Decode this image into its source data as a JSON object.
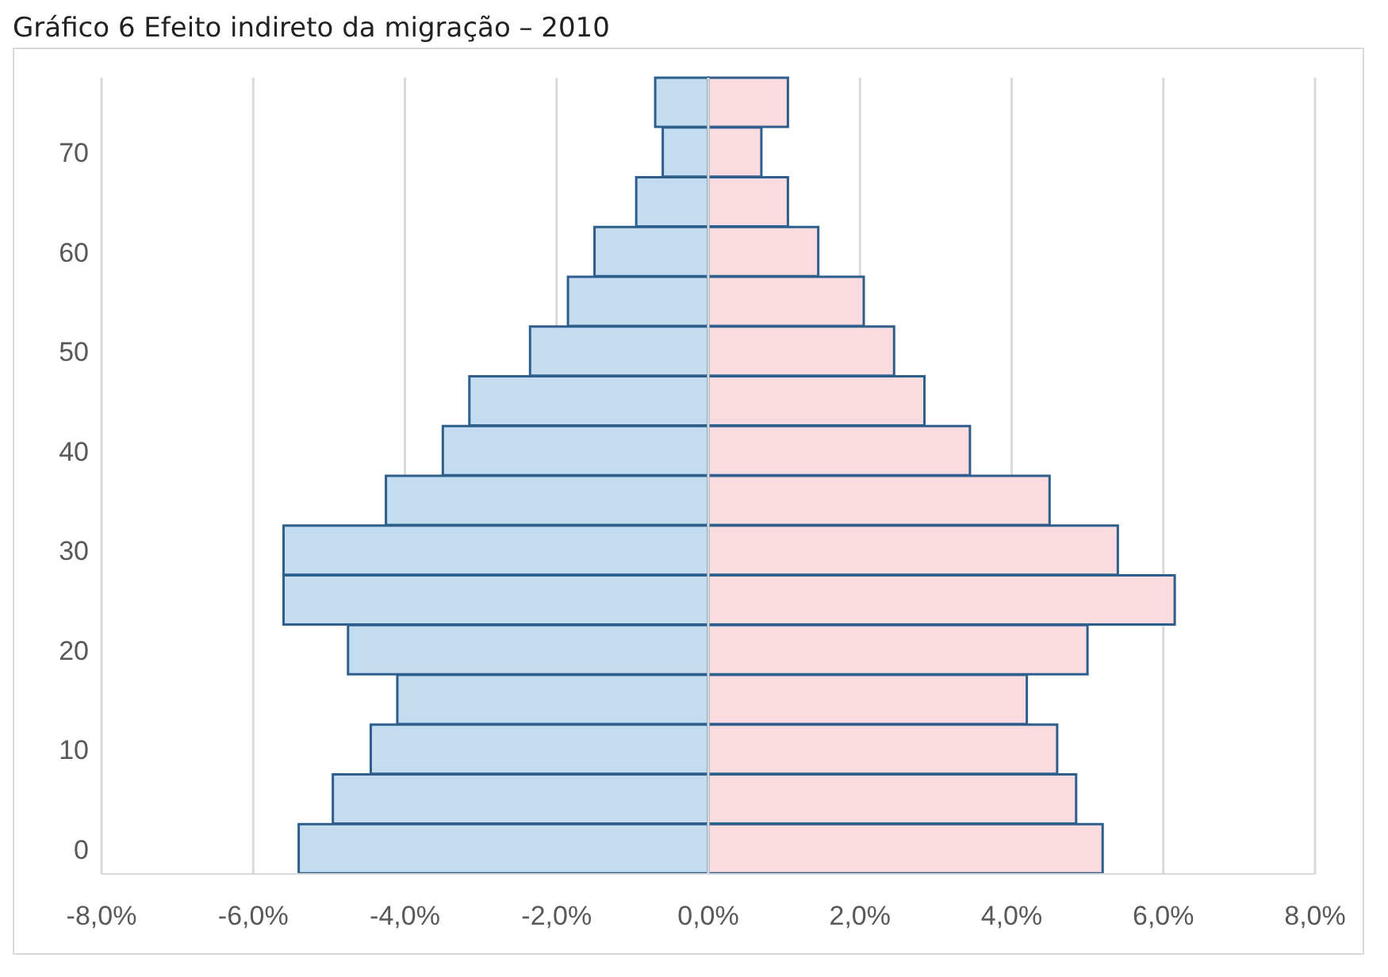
{
  "chart_data": {
    "type": "bar",
    "orientation": "horizontal",
    "stacked": true,
    "title": "Gráfico 6 Efeito indireto da migração – 2010",
    "categories": [
      null,
      "70",
      null,
      "60",
      null,
      "50",
      null,
      "40",
      null,
      "30",
      null,
      "20",
      null,
      "10",
      null,
      "0"
    ],
    "series": [
      {
        "color": "#c3dcef",
        "values": [
          -0.7,
          -0.6,
          -0.95,
          -1.5,
          -1.85,
          -2.35,
          -3.15,
          -3.5,
          -4.25,
          -5.6,
          -5.6,
          -4.75,
          -4.1,
          -4.45,
          -4.95,
          -5.4
        ]
      },
      {
        "color": "#f9dbe0",
        "values": [
          1.05,
          0.7,
          1.05,
          1.45,
          2.05,
          2.45,
          2.85,
          3.45,
          4.5,
          5.4,
          6.15,
          5.0,
          4.2,
          4.6,
          4.85,
          5.2
        ]
      }
    ],
    "xlim": [
      -8,
      8
    ],
    "xticks": [
      {
        "value": -8,
        "label": "-8,0%"
      },
      {
        "value": -6,
        "label": "-6,0%"
      },
      {
        "value": -4,
        "label": "-4,0%"
      },
      {
        "value": -2,
        "label": "-2,0%"
      },
      {
        "value": 0,
        "label": "0,0%"
      },
      {
        "value": 2,
        "label": "2,0%"
      },
      {
        "value": 4,
        "label": "4,0%"
      },
      {
        "value": 6,
        "label": "6,0%"
      },
      {
        "value": 8,
        "label": "8,0%"
      }
    ],
    "grid": "x",
    "legend": false
  }
}
